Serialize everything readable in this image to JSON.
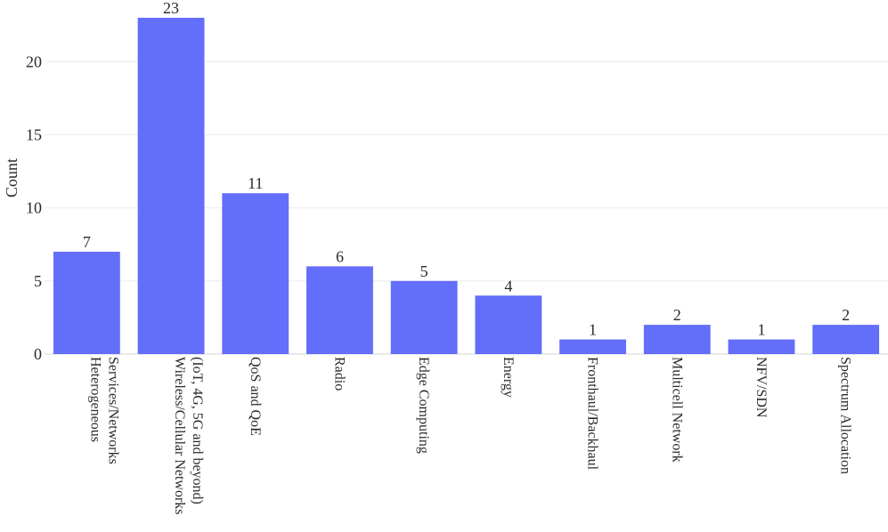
{
  "chart_data": {
    "type": "bar",
    "categories": [
      [
        "Heterogeneous",
        "Services/Networks"
      ],
      [
        "Wireless/Cellular Networks",
        "(IoT, 4G, 5G and beyond)"
      ],
      [
        "QoS and QoE"
      ],
      [
        "Radio"
      ],
      [
        "Edge Computing"
      ],
      [
        "Energy"
      ],
      [
        "Fronthaul/Backhaul"
      ],
      [
        "Multicell Network"
      ],
      [
        "NFV/SDN"
      ],
      [
        "Spectrum  Allocation"
      ]
    ],
    "values": [
      7,
      23,
      11,
      6,
      5,
      4,
      1,
      2,
      1,
      2
    ],
    "data_labels": [
      "7",
      "23",
      "11",
      "6",
      "5",
      "4",
      "1",
      "2",
      "1",
      "2"
    ],
    "title": "",
    "xlabel": "",
    "ylabel": "Count",
    "ylim": [
      0,
      23
    ],
    "yticks": [
      0,
      5,
      10,
      15,
      20
    ],
    "grid": true,
    "bar_color": "#636efa"
  }
}
